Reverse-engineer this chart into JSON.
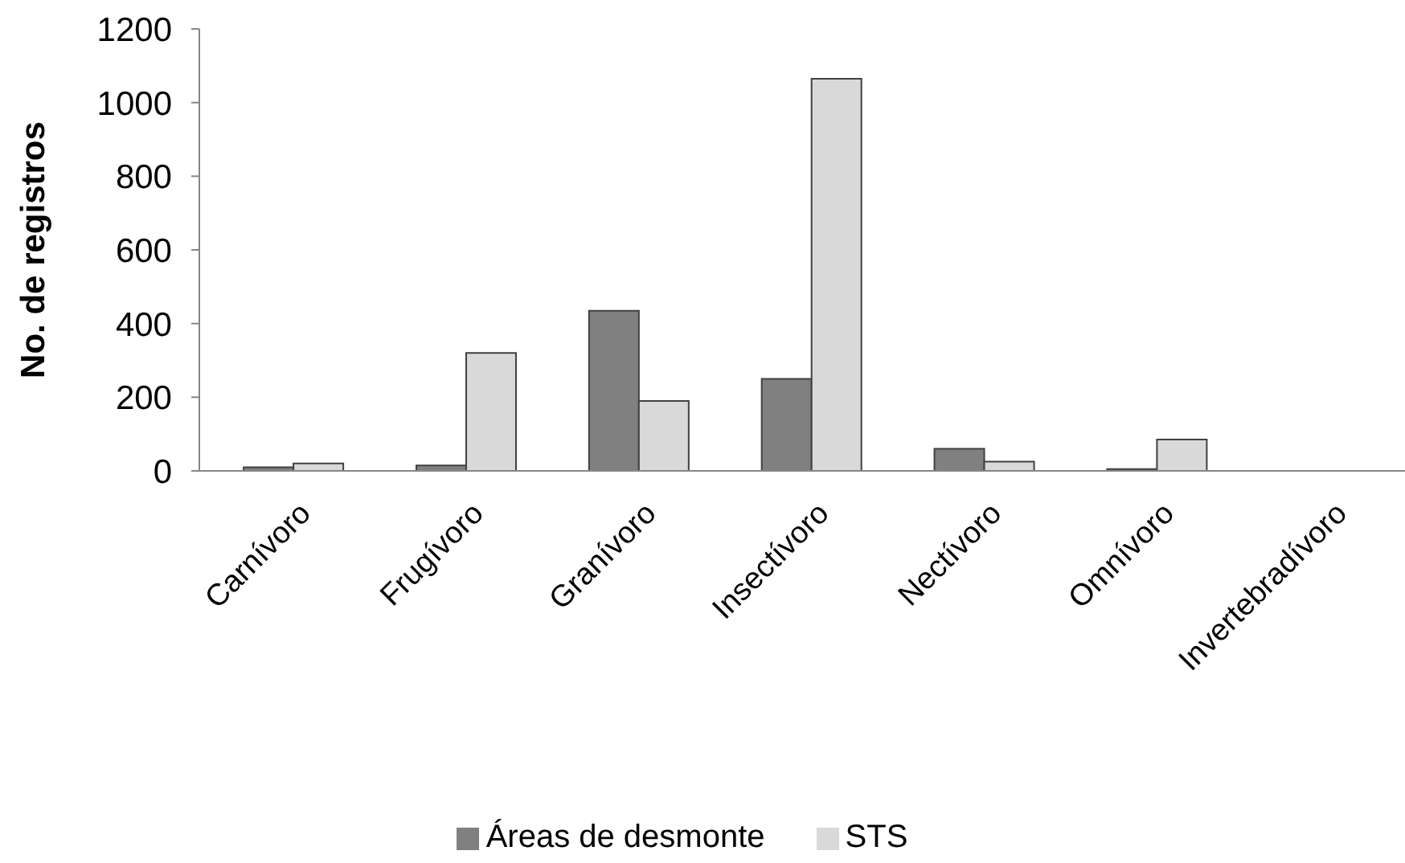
{
  "chart_data": {
    "type": "bar",
    "ylabel": "No. de registros",
    "categories": [
      "Carnívoro",
      "Frugívoro",
      "Granívoro",
      "Insectívoro",
      "Nectívoro",
      "Omnívoro",
      "Invertebradívoro"
    ],
    "series": [
      {
        "name": "Áreas de desmonte",
        "color": "#808080",
        "values": [
          10,
          15,
          435,
          250,
          60,
          5,
          0
        ]
      },
      {
        "name": "STS",
        "color": "#d9d9d9",
        "values": [
          20,
          320,
          190,
          1065,
          25,
          85,
          0
        ]
      }
    ],
    "ylim": [
      0,
      1200
    ],
    "yticks": [
      0,
      200,
      400,
      600,
      800,
      1000,
      1200
    ],
    "grid": false,
    "legend": "bottom"
  }
}
